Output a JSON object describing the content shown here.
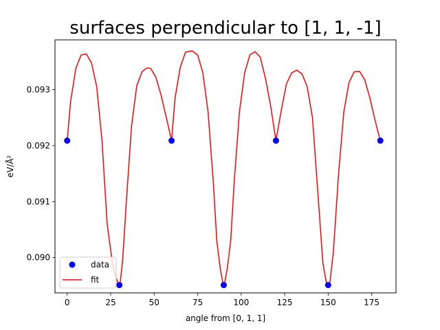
{
  "chart_data": {
    "type": "line",
    "title": "surfaces perpendicular to [1, 1, -1]",
    "xlabel": "angle from [0, 1, 1]",
    "ylabel": "eV/Å²",
    "xlim": [
      -7,
      189
    ],
    "ylim": [
      0.08937,
      0.09389
    ],
    "xticks": [
      0,
      25,
      50,
      75,
      100,
      125,
      150,
      175
    ],
    "xtick_labels": [
      "0",
      "25",
      "50",
      "75",
      "100",
      "125",
      "150",
      "175"
    ],
    "yticks": [
      0.09,
      0.091,
      0.092,
      0.093
    ],
    "ytick_labels": [
      "0.090",
      "0.091",
      "0.092",
      "0.093"
    ],
    "grid": false,
    "legend_position": "lower-left",
    "colors": {
      "data": "#0000ff",
      "fit": "#ff0000"
    },
    "series": [
      {
        "name": "data",
        "kind": "scatter",
        "x": [
          0,
          30,
          60,
          90,
          120,
          150,
          180
        ],
        "y": [
          0.09209,
          0.08951,
          0.09209,
          0.08951,
          0.09209,
          0.08951,
          0.09209
        ]
      },
      {
        "name": "fit",
        "kind": "line",
        "x": [
          0,
          2,
          5,
          8,
          11,
          14,
          17,
          20,
          23,
          26,
          28,
          29.5,
          30,
          30.5,
          32,
          34,
          37,
          40,
          43,
          46,
          48,
          51,
          54,
          57,
          60,
          62,
          65,
          68,
          71,
          72,
          75,
          78,
          81,
          84,
          86,
          88,
          89.5,
          90,
          90.5,
          92,
          94,
          96,
          99,
          102,
          105,
          108,
          111,
          114,
          117,
          120,
          123,
          126,
          129,
          132,
          135,
          138,
          141,
          144,
          147,
          149,
          150,
          151,
          153,
          156,
          159,
          162,
          165,
          168,
          171,
          174,
          177,
          180
        ],
        "y": [
          0.09209,
          0.0928,
          0.09338,
          0.09362,
          0.09364,
          0.09348,
          0.09305,
          0.0921,
          0.0906,
          0.0899,
          0.08965,
          0.08952,
          0.08951,
          0.08955,
          0.09,
          0.091,
          0.09235,
          0.09307,
          0.09332,
          0.09339,
          0.09338,
          0.09322,
          0.0929,
          0.0925,
          0.09209,
          0.09285,
          0.0934,
          0.09367,
          0.09369,
          0.09369,
          0.09362,
          0.0933,
          0.0926,
          0.09135,
          0.0903,
          0.0898,
          0.08955,
          0.08951,
          0.08955,
          0.0898,
          0.0903,
          0.09135,
          0.0926,
          0.0933,
          0.09362,
          0.09368,
          0.09358,
          0.0932,
          0.0927,
          0.09209,
          0.09262,
          0.0931,
          0.0933,
          0.09335,
          0.09328,
          0.09305,
          0.0925,
          0.0912,
          0.0899,
          0.08955,
          0.08951,
          0.08956,
          0.0901,
          0.0915,
          0.0926,
          0.09313,
          0.09332,
          0.09333,
          0.09318,
          0.09285,
          0.09245,
          0.09209
        ]
      }
    ]
  }
}
